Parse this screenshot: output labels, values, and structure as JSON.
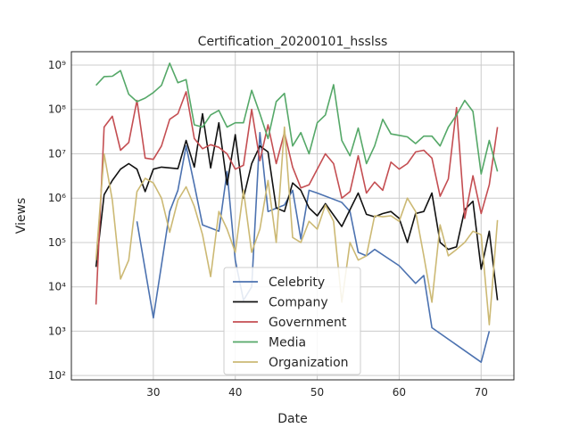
{
  "chart_data": {
    "type": "line",
    "title": "Certification_20200101_hsslss",
    "xlabel": "Date",
    "ylabel": "Views",
    "y_scale": "log",
    "xlim": [
      20,
      74
    ],
    "ylim": [
      80,
      2000000000
    ],
    "x_ticks": [
      30,
      40,
      50,
      60,
      70
    ],
    "y_ticks": [
      {
        "value": 100,
        "label": "10²"
      },
      {
        "value": 1000,
        "label": "10³"
      },
      {
        "value": 10000,
        "label": "10⁴"
      },
      {
        "value": 100000,
        "label": "10⁵"
      },
      {
        "value": 1000000,
        "label": "10⁶"
      },
      {
        "value": 10000000,
        "label": "10⁷"
      },
      {
        "value": 100000000,
        "label": "10⁸"
      },
      {
        "value": 1000000000,
        "label": "10⁹"
      }
    ],
    "grid": true,
    "legend_position": "bottom-center",
    "series": [
      {
        "name": "Celebrity",
        "color": "#4c72b0",
        "points": [
          [
            28,
            300000
          ],
          [
            30,
            2000
          ],
          [
            32,
            500000
          ],
          [
            33,
            1500000
          ],
          [
            34,
            15000000
          ],
          [
            35,
            2000000
          ],
          [
            36,
            250000
          ],
          [
            38,
            180000
          ],
          [
            39,
            4000000
          ],
          [
            40,
            40000
          ],
          [
            41,
            5000
          ],
          [
            42,
            10000
          ],
          [
            43,
            30000000
          ],
          [
            44,
            500000
          ],
          [
            46,
            700000
          ],
          [
            47,
            1500000
          ],
          [
            48,
            120000
          ],
          [
            49,
            1500000
          ],
          [
            50,
            1300000
          ],
          [
            53,
            800000
          ],
          [
            54,
            500000
          ],
          [
            55,
            60000
          ],
          [
            56,
            50000
          ],
          [
            57,
            70000
          ],
          [
            60,
            30000
          ],
          [
            62,
            12000
          ],
          [
            63,
            18000
          ],
          [
            64,
            1200
          ],
          [
            70,
            200
          ],
          [
            71,
            1000
          ]
        ]
      },
      {
        "name": "Company",
        "color": "#111111",
        "points": [
          [
            23,
            28000
          ],
          [
            24,
            1200000
          ],
          [
            25,
            2500000
          ],
          [
            26,
            4500000
          ],
          [
            27,
            6000000
          ],
          [
            28,
            4500000
          ],
          [
            29,
            1400000
          ],
          [
            30,
            4500000
          ],
          [
            31,
            5000000
          ],
          [
            32,
            4800000
          ],
          [
            33,
            4600000
          ],
          [
            34,
            20000000
          ],
          [
            35,
            5000000
          ],
          [
            36,
            80000000
          ],
          [
            37,
            4800000
          ],
          [
            38,
            50000000
          ],
          [
            39,
            2000000
          ],
          [
            40,
            27000000
          ],
          [
            41,
            1000000
          ],
          [
            42,
            6000000
          ],
          [
            43,
            15000000
          ],
          [
            44,
            11000000
          ],
          [
            45,
            600000
          ],
          [
            46,
            500000
          ],
          [
            47,
            2200000
          ],
          [
            48,
            1500000
          ],
          [
            49,
            600000
          ],
          [
            50,
            400000
          ],
          [
            51,
            750000
          ],
          [
            53,
            230000
          ],
          [
            54,
            550000
          ],
          [
            55,
            1300000
          ],
          [
            56,
            430000
          ],
          [
            57,
            380000
          ],
          [
            58,
            450000
          ],
          [
            59,
            500000
          ],
          [
            60,
            350000
          ],
          [
            61,
            100000
          ],
          [
            62,
            450000
          ],
          [
            63,
            500000
          ],
          [
            64,
            1300000
          ],
          [
            65,
            100000
          ],
          [
            66,
            70000
          ],
          [
            67,
            80000
          ],
          [
            68,
            550000
          ],
          [
            69,
            850000
          ],
          [
            70,
            25000
          ],
          [
            71,
            180000
          ],
          [
            72,
            5000
          ]
        ]
      },
      {
        "name": "Government",
        "color": "#c44e52",
        "points": [
          [
            23,
            4000
          ],
          [
            24,
            40000000
          ],
          [
            25,
            70000000
          ],
          [
            26,
            12000000
          ],
          [
            27,
            18000000
          ],
          [
            28,
            160000000
          ],
          [
            29,
            8000000
          ],
          [
            30,
            7500000
          ],
          [
            31,
            15000000
          ],
          [
            32,
            60000000
          ],
          [
            33,
            80000000
          ],
          [
            34,
            250000000
          ],
          [
            35,
            22000000
          ],
          [
            36,
            13000000
          ],
          [
            37,
            16000000
          ],
          [
            38,
            14000000
          ],
          [
            39,
            10000000
          ],
          [
            40,
            4500000
          ],
          [
            41,
            5500000
          ],
          [
            42,
            100000000
          ],
          [
            43,
            7000000
          ],
          [
            44,
            45000000
          ],
          [
            45,
            6000000
          ],
          [
            46,
            30000000
          ],
          [
            47,
            5000000
          ],
          [
            48,
            1700000
          ],
          [
            49,
            2000000
          ],
          [
            50,
            4500000
          ],
          [
            51,
            10000000
          ],
          [
            52,
            6000000
          ],
          [
            53,
            1000000
          ],
          [
            54,
            1400000
          ],
          [
            55,
            9000000
          ],
          [
            56,
            1300000
          ],
          [
            57,
            2300000
          ],
          [
            58,
            1500000
          ],
          [
            59,
            6500000
          ],
          [
            60,
            4500000
          ],
          [
            61,
            6000000
          ],
          [
            62,
            11000000
          ],
          [
            63,
            12000000
          ],
          [
            64,
            8000000
          ],
          [
            65,
            1100000
          ],
          [
            66,
            2700000
          ],
          [
            67,
            110000000
          ],
          [
            68,
            350000
          ],
          [
            69,
            3200000
          ],
          [
            70,
            450000
          ],
          [
            71,
            2000000
          ],
          [
            72,
            40000000
          ]
        ]
      },
      {
        "name": "Media",
        "color": "#55a868",
        "points": [
          [
            23,
            350000000
          ],
          [
            24,
            550000000
          ],
          [
            25,
            560000000
          ],
          [
            26,
            750000000
          ],
          [
            27,
            220000000
          ],
          [
            28,
            150000000
          ],
          [
            29,
            180000000
          ],
          [
            30,
            240000000
          ],
          [
            31,
            350000000
          ],
          [
            32,
            1100000000
          ],
          [
            33,
            400000000
          ],
          [
            34,
            470000000
          ],
          [
            35,
            45000000
          ],
          [
            36,
            40000000
          ],
          [
            37,
            75000000
          ],
          [
            38,
            95000000
          ],
          [
            39,
            40000000
          ],
          [
            40,
            50000000
          ],
          [
            41,
            50000000
          ],
          [
            42,
            270000000
          ],
          [
            43,
            80000000
          ],
          [
            44,
            22000000
          ],
          [
            45,
            150000000
          ],
          [
            46,
            230000000
          ],
          [
            47,
            15000000
          ],
          [
            48,
            30000000
          ],
          [
            49,
            10000000
          ],
          [
            50,
            50000000
          ],
          [
            51,
            75000000
          ],
          [
            52,
            360000000
          ],
          [
            53,
            20000000
          ],
          [
            54,
            9000000
          ],
          [
            55,
            38000000
          ],
          [
            56,
            6000000
          ],
          [
            57,
            15000000
          ],
          [
            58,
            60000000
          ],
          [
            59,
            28000000
          ],
          [
            60,
            26000000
          ],
          [
            61,
            24000000
          ],
          [
            62,
            17000000
          ],
          [
            63,
            25000000
          ],
          [
            64,
            25000000
          ],
          [
            65,
            15000000
          ],
          [
            66,
            40000000
          ],
          [
            67,
            75000000
          ],
          [
            68,
            160000000
          ],
          [
            69,
            90000000
          ],
          [
            70,
            3500000
          ],
          [
            71,
            20000000
          ],
          [
            72,
            4000000
          ]
        ]
      },
      {
        "name": "Organization",
        "color": "#ccb974",
        "points": [
          [
            23,
            40000
          ],
          [
            24,
            10000000
          ],
          [
            25,
            900000
          ],
          [
            26,
            15000
          ],
          [
            27,
            40000
          ],
          [
            28,
            1400000
          ],
          [
            29,
            2800000
          ],
          [
            30,
            2200000
          ],
          [
            31,
            1000000
          ],
          [
            32,
            170000
          ],
          [
            33,
            900000
          ],
          [
            34,
            1800000
          ],
          [
            35,
            650000
          ],
          [
            36,
            150000
          ],
          [
            37,
            17000
          ],
          [
            38,
            500000
          ],
          [
            39,
            200000
          ],
          [
            40,
            60000
          ],
          [
            41,
            1500000
          ],
          [
            42,
            60000
          ],
          [
            43,
            200000
          ],
          [
            44,
            2500000
          ],
          [
            45,
            100000
          ],
          [
            46,
            40000000
          ],
          [
            47,
            130000
          ],
          [
            48,
            100000
          ],
          [
            49,
            300000
          ],
          [
            50,
            200000
          ],
          [
            51,
            700000
          ],
          [
            52,
            300000
          ],
          [
            53,
            4500
          ],
          [
            54,
            100000
          ],
          [
            55,
            40000
          ],
          [
            56,
            50000
          ],
          [
            57,
            400000
          ],
          [
            58,
            380000
          ],
          [
            59,
            400000
          ],
          [
            60,
            300000
          ],
          [
            61,
            1000000
          ],
          [
            62,
            500000
          ],
          [
            63,
            50000
          ],
          [
            64,
            4500
          ],
          [
            65,
            250000
          ],
          [
            66,
            50000
          ],
          [
            67,
            70000
          ],
          [
            68,
            100000
          ],
          [
            69,
            180000
          ],
          [
            70,
            150000
          ],
          [
            71,
            1400
          ],
          [
            72,
            320000
          ]
        ]
      }
    ]
  }
}
